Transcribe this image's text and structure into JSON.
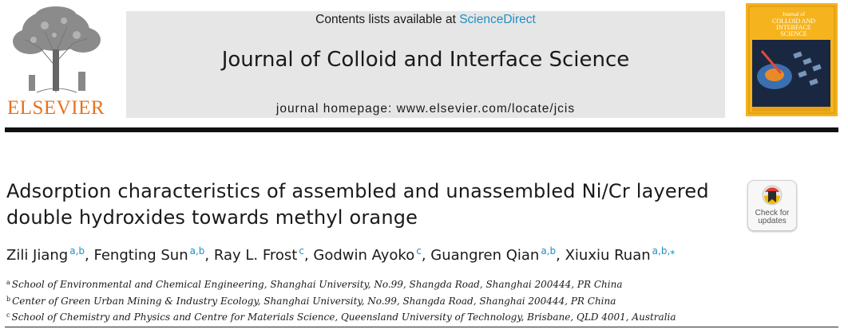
{
  "publisher": {
    "name": "ELSEVIER"
  },
  "header": {
    "contents_prefix": "Contents lists available at ",
    "contents_link": "ScienceDirect",
    "journal_title": "Journal of Colloid and Interface Science",
    "homepage": "journal homepage: www.elsevier.com/locate/jcis"
  },
  "cover": {
    "title_line1": "Journal of",
    "title_line2": "COLLOID AND",
    "title_line3": "INTERFACE",
    "title_line4": "SCIENCE"
  },
  "article": {
    "title": "Adsorption characteristics of assembled and unassembled Ni/Cr layered double hydroxides towards methyl orange",
    "check_badge_line1": "Check for",
    "check_badge_line2": "updates",
    "authors": [
      {
        "name": "Zili Jiang",
        "sup": "a,b"
      },
      {
        "name": "Fengting Sun",
        "sup": "a,b"
      },
      {
        "name": "Ray L. Frost",
        "sup": "c"
      },
      {
        "name": "Godwin Ayoko",
        "sup": "c"
      },
      {
        "name": "Guangren Qian",
        "sup": "a,b"
      },
      {
        "name": "Xiuxiu Ruan",
        "sup": "a,b,⁎"
      }
    ],
    "separator": ", ",
    "affiliations": [
      {
        "mark": "a",
        "text": "School of Environmental and Chemical Engineering, Shanghai University, No.99, Shangda Road, Shanghai 200444, PR China"
      },
      {
        "mark": "b",
        "text": "Center of Green Urban Mining & Industry Ecology, Shanghai University, No.99, Shangda Road, Shanghai 200444, PR China"
      },
      {
        "mark": "c",
        "text": "School of Chemistry and Physics and Centre for Materials Science, Queensland University of Technology, Brisbane, QLD 4001, Australia"
      }
    ]
  },
  "colors": {
    "link": "#1f8fc4",
    "elsevier_orange": "#e9711c",
    "cover_yellow": "#f3b21b"
  },
  "icons": {
    "publisher_logo": "elsevier-tree-logo",
    "cover": "journal-cover-image",
    "badge": "check-for-updates-icon"
  }
}
